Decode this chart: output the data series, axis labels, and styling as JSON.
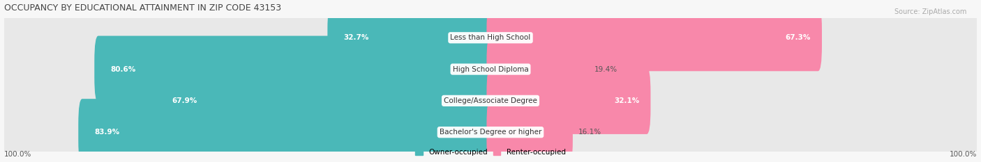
{
  "title": "OCCUPANCY BY EDUCATIONAL ATTAINMENT IN ZIP CODE 43153",
  "source": "Source: ZipAtlas.com",
  "categories": [
    "Less than High School",
    "High School Diploma",
    "College/Associate Degree",
    "Bachelor's Degree or higher"
  ],
  "owner_pct": [
    32.7,
    80.6,
    67.9,
    83.9
  ],
  "renter_pct": [
    67.3,
    19.4,
    32.1,
    16.1
  ],
  "owner_color": "#4ab8b8",
  "renter_color": "#f888aa",
  "bg_row_color": "#e8e8e8",
  "title_color": "#444444",
  "text_color": "#555555",
  "bar_height": 0.52,
  "figsize": [
    14.06,
    2.33
  ],
  "dpi": 100,
  "owner_label": "Owner-occupied",
  "renter_label": "Renter-occupied",
  "axis_label_left": "100.0%",
  "axis_label_right": "100.0%"
}
